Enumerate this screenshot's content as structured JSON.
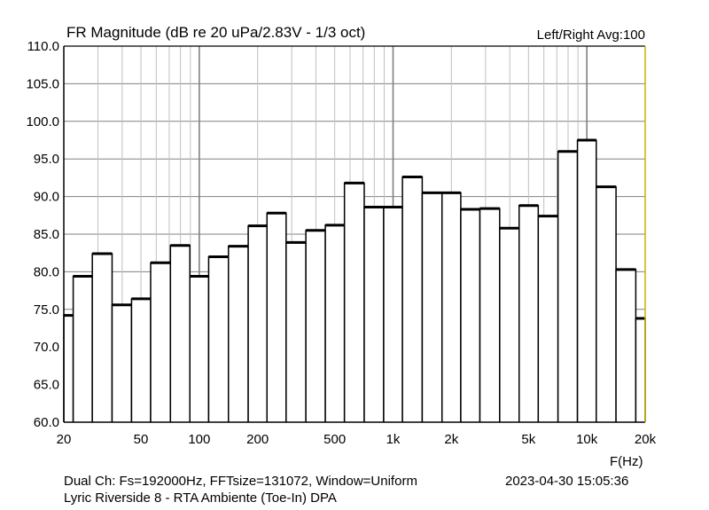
{
  "chart_data": {
    "type": "bar",
    "title": "FR Magnitude (dB re 20 uPa/2.83V - 1/3 oct)",
    "channel_label": "Left/Right  Avg:100",
    "xlabel": "F(Hz)",
    "ylabel": "",
    "x_scale": "log",
    "xlim": [
      20,
      20000
    ],
    "ylim": [
      60,
      110
    ],
    "grid": true,
    "y_ticks": [
      "110.0",
      "105.0",
      "100.0",
      "95.0",
      "90.0",
      "85.0",
      "80.0",
      "75.0",
      "70.0",
      "65.0",
      "60.0"
    ],
    "x_ticks": [
      {
        "value": 20,
        "label": "20"
      },
      {
        "value": 50,
        "label": "50"
      },
      {
        "value": 100,
        "label": "100"
      },
      {
        "value": 200,
        "label": "200"
      },
      {
        "value": 500,
        "label": "500"
      },
      {
        "value": 1000,
        "label": "1k"
      },
      {
        "value": 2000,
        "label": "2k"
      },
      {
        "value": 5000,
        "label": "5k"
      },
      {
        "value": 10000,
        "label": "10k"
      },
      {
        "value": 20000,
        "label": "20k"
      }
    ],
    "categories": [
      "20",
      "25",
      "31.5",
      "40",
      "50",
      "63",
      "80",
      "100",
      "125",
      "160",
      "200",
      "250",
      "315",
      "400",
      "500",
      "630",
      "800",
      "1k",
      "1.25k",
      "1.6k",
      "2k",
      "2.5k",
      "3.15k",
      "4k",
      "5k",
      "6.3k",
      "8k",
      "10k",
      "12.5k",
      "16k",
      "20k"
    ],
    "centers": [
      20,
      25,
      31.5,
      40,
      50,
      63,
      80,
      100,
      125,
      160,
      200,
      250,
      315,
      400,
      500,
      630,
      800,
      1000,
      1250,
      1600,
      2000,
      2500,
      3150,
      4000,
      5000,
      6300,
      8000,
      10000,
      12500,
      16000,
      20000
    ],
    "values": [
      74.2,
      79.4,
      82.4,
      75.6,
      76.4,
      81.2,
      83.5,
      79.4,
      82.0,
      83.4,
      86.1,
      87.8,
      83.9,
      85.5,
      86.2,
      91.8,
      88.6,
      88.6,
      92.6,
      90.5,
      90.5,
      88.3,
      88.4,
      85.8,
      88.8,
      87.4,
      96.0,
      97.5,
      91.3,
      80.3,
      73.8
    ],
    "colors": {
      "bar_outline": "#000000",
      "bar_fill": "#ffffff",
      "grid": "#c0c0c0",
      "grid_major": "#808080",
      "right_edge": "#c8b400"
    }
  },
  "footer": {
    "settings": "Dual Ch: Fs=192000Hz, FFTsize=131072, Window=Uniform",
    "description": "Lyric Riverside 8 - RTA Ambiente (Toe-In)     DPA",
    "datetime": "2023-04-30   15:05:36"
  }
}
